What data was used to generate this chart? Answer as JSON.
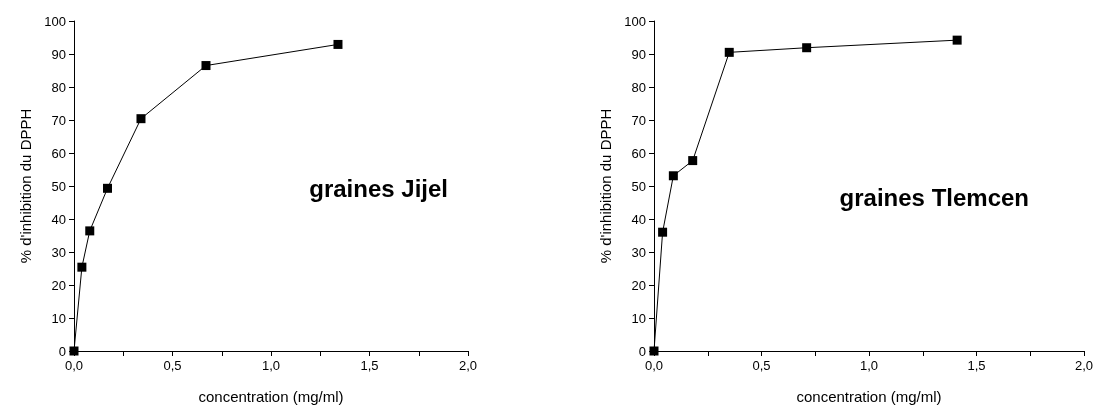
{
  "chart_data": [
    {
      "type": "line",
      "xlabel": "concentration (mg/ml)",
      "ylabel": "% d'inhibition du DPPH",
      "annotations": [
        "graines Jijel"
      ],
      "x": [
        0,
        0.04,
        0.08,
        0.17,
        0.34,
        0.67,
        1.34
      ],
      "series": [
        {
          "color": "#000000",
          "values": [
            0,
            25.4,
            36.4,
            49.3,
            70.4,
            86.5,
            92.9
          ]
        }
      ],
      "xlim": [
        0,
        2
      ],
      "ylim": [
        0,
        100
      ],
      "xticks": [
        {
          "value": 0,
          "label": "0,0"
        },
        {
          "value": 0.25,
          "label": null
        },
        {
          "value": 0.5,
          "label": "0,5"
        },
        {
          "value": 0.75,
          "label": null
        },
        {
          "value": 1,
          "label": "1,0"
        },
        {
          "value": 1.25,
          "label": null
        },
        {
          "value": 1.5,
          "label": "1,5"
        },
        {
          "value": 1.75,
          "label": null
        },
        {
          "value": 2,
          "label": "2,0"
        }
      ],
      "yticks": [
        0,
        10,
        20,
        30,
        40,
        50,
        60,
        70,
        80,
        90,
        100
      ],
      "grid": false,
      "marker": "square",
      "line_style": "solid"
    },
    {
      "type": "line",
      "xlabel": "concentration (mg/ml)",
      "ylabel": "% d'inhibition du DPPH",
      "annotations": [
        "graines Tlemcen"
      ],
      "x": [
        0,
        0.04,
        0.09,
        0.18,
        0.35,
        0.71,
        1.41
      ],
      "series": [
        {
          "color": "#000000",
          "values": [
            0,
            36.0,
            53.1,
            57.7,
            90.5,
            91.9,
            94.2
          ]
        }
      ],
      "xlim": [
        0,
        2
      ],
      "ylim": [
        0,
        100
      ],
      "xticks": [
        {
          "value": 0,
          "label": "0,0"
        },
        {
          "value": 0.25,
          "label": null
        },
        {
          "value": 0.5,
          "label": "0,5"
        },
        {
          "value": 0.75,
          "label": null
        },
        {
          "value": 1,
          "label": "1,0"
        },
        {
          "value": 1.25,
          "label": null
        },
        {
          "value": 1.5,
          "label": "1,5"
        },
        {
          "value": 1.75,
          "label": null
        },
        {
          "value": 2,
          "label": "2,0"
        }
      ],
      "yticks": [
        0,
        10,
        20,
        30,
        40,
        50,
        60,
        70,
        80,
        90,
        100
      ],
      "grid": false,
      "marker": "square",
      "line_style": "solid"
    }
  ]
}
